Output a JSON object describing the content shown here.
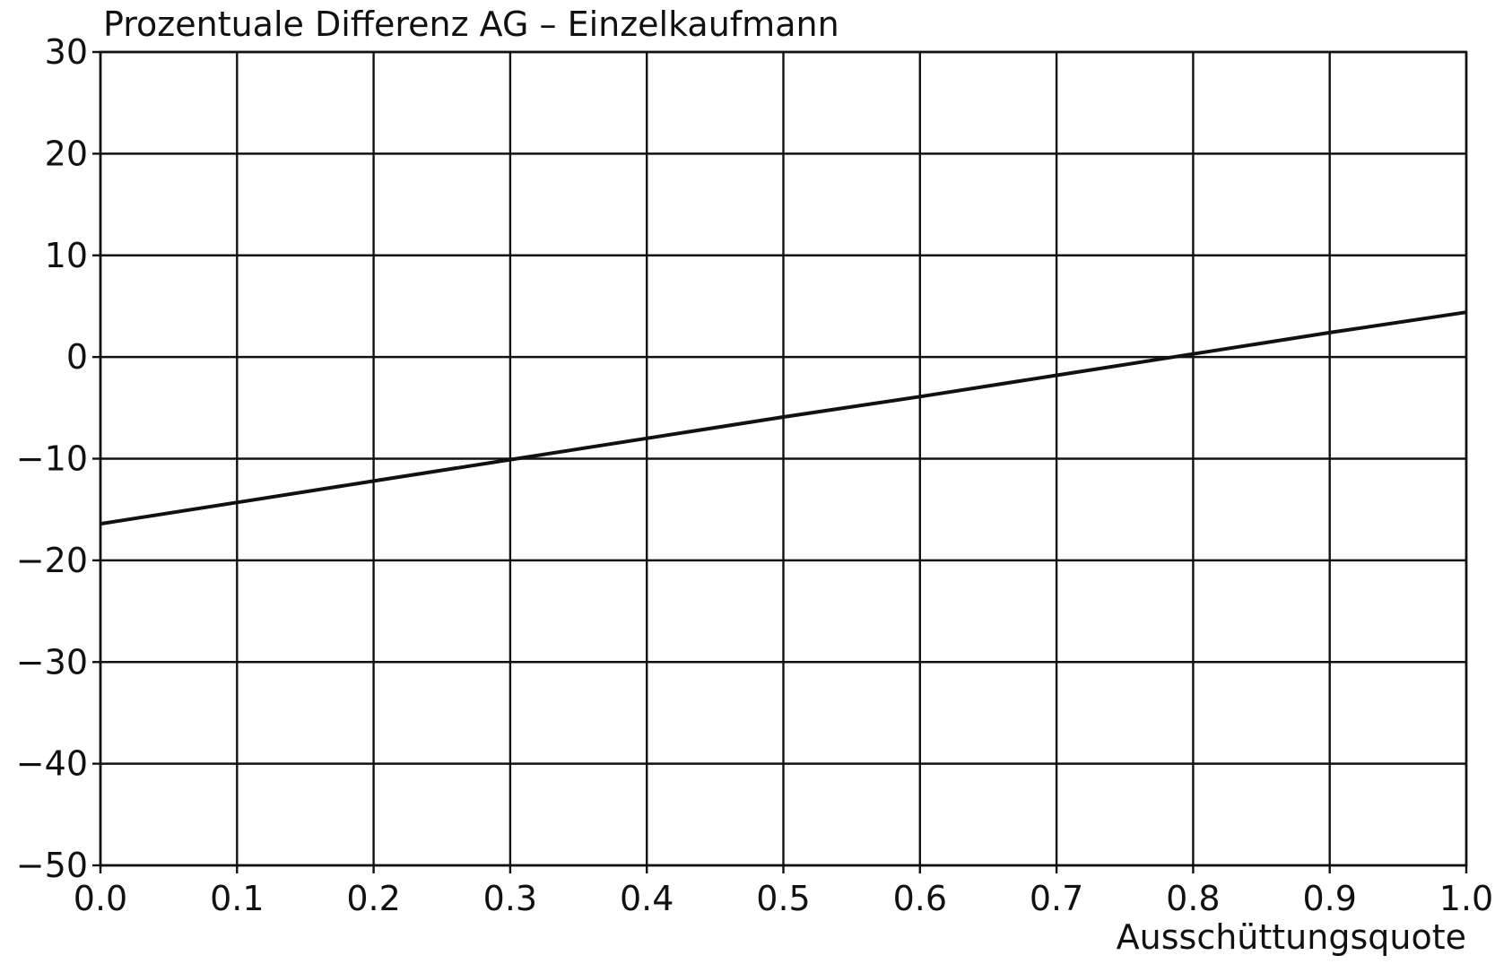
{
  "chart_data": {
    "type": "line",
    "title": "Prozentuale Differenz AG – Einzelkaufmann",
    "xlabel": "Ausschüttungsquote",
    "ylabel": "",
    "xlim": [
      0.0,
      1.0
    ],
    "ylim": [
      -50,
      30
    ],
    "x_ticks": [
      "0.0",
      "0.1",
      "0.2",
      "0.3",
      "0.4",
      "0.5",
      "0.6",
      "0.7",
      "0.8",
      "0.9",
      "1.0"
    ],
    "y_ticks": [
      "30",
      "20",
      "10",
      "0",
      "−10",
      "−20",
      "−30",
      "−40",
      "−50"
    ],
    "grid": true,
    "series": [
      {
        "x": [
          0.0,
          0.1,
          0.2,
          0.3,
          0.4,
          0.5,
          0.6,
          0.7,
          0.8,
          0.9,
          1.0
        ],
        "values": [
          -16.4,
          -14.3,
          -12.2,
          -10.1,
          -8.0,
          -5.9,
          -3.9,
          -1.8,
          0.3,
          2.4,
          4.4
        ]
      }
    ]
  }
}
